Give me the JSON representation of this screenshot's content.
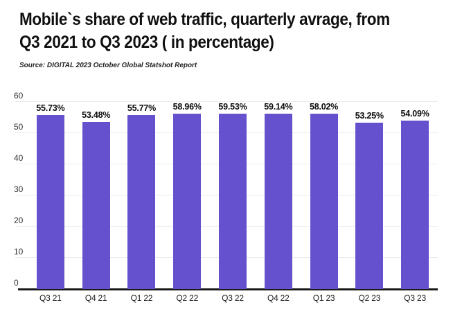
{
  "header": {
    "title_line1": "Mobile`s share of web traffic, quarterly avrage, from",
    "title_line2": "Q3 2021 to Q3 2023 ( in percentage)",
    "source": "Source: DIGITAL 2023 October Global Statshot Report"
  },
  "chart_data": {
    "type": "bar",
    "title": "Mobile`s share of web traffic, quarterly avrage, from Q3 2021 to Q3 2023 ( in percentage)",
    "source": "Source: DIGITAL 2023 October Global Statshot Report",
    "categories": [
      "Q3 21",
      "Q4 21",
      "Q1 22",
      "Q2 22",
      "Q3 22",
      "Q4 22",
      "Q1 23",
      "Q2 23",
      "Q3 23"
    ],
    "values": [
      55.73,
      53.48,
      55.77,
      58.96,
      59.53,
      59.14,
      58.02,
      53.25,
      54.09
    ],
    "labels": [
      "55.73%",
      "53.48%",
      "55.77%",
      "58.96%",
      "59.53%",
      "59.14%",
      "58.02%",
      "53.25%",
      "54.09%"
    ],
    "xlabel": "",
    "ylabel": "",
    "ylim": [
      0,
      60
    ],
    "yticks": [
      0,
      10,
      20,
      30,
      40,
      50,
      60
    ],
    "grid": true,
    "legend_position": "none",
    "colors": {
      "bar": "#6551CE",
      "gridline": "#ececec",
      "axis": "#1a1a1a",
      "title": "#101010",
      "tick_text": "#333333",
      "value_label": "#0d0d0d"
    }
  }
}
